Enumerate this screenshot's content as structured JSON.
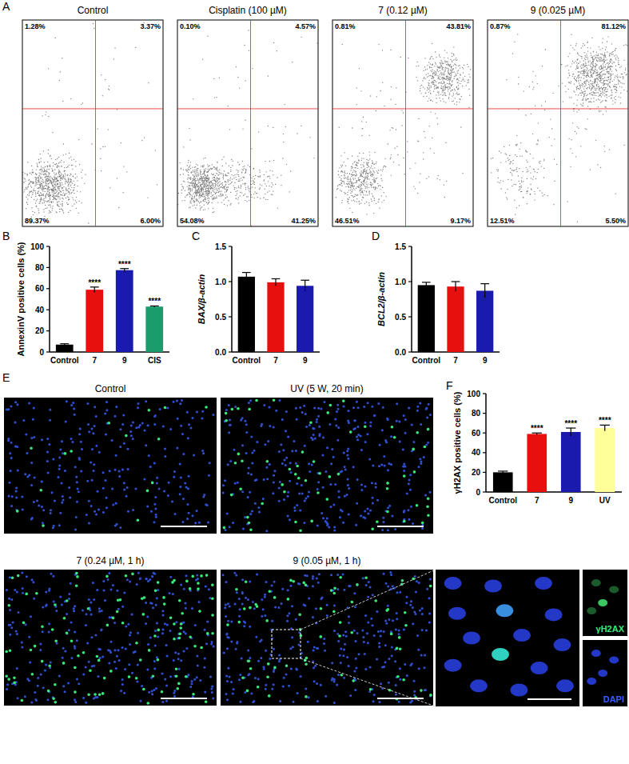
{
  "panel_labels": [
    "A",
    "B",
    "C",
    "D",
    "E",
    "F"
  ],
  "flow_cytometry": [
    {
      "title": "Control",
      "quadrants": [
        "1.28%",
        "3.37%",
        "89.37%",
        "6.00%"
      ]
    },
    {
      "title": "Cisplatin (100 µM)",
      "quadrants": [
        "0.10%",
        "4.57%",
        "54.08%",
        "41.25%"
      ]
    },
    {
      "title": "7 (0.12 µM)",
      "quadrants": [
        "0.81%",
        "43.81%",
        "46.51%",
        "9.17%"
      ]
    },
    {
      "title": "9 (0.025 µM)",
      "quadrants": [
        "0.87%",
        "81.12%",
        "12.51%",
        "5.50%"
      ]
    }
  ],
  "chart_data": [
    {
      "type": "bar",
      "ylabel": "AnnexinV positive cells (%)",
      "categories": [
        "Control",
        "7",
        "9",
        "CIS"
      ],
      "values": [
        7,
        59,
        77.5,
        43
      ],
      "errors": [
        0.8,
        2.5,
        1.5,
        0.6
      ],
      "colors": [
        "#000000",
        "#e8100f",
        "#1a1aae",
        "#1a9c6c"
      ],
      "significance": [
        null,
        "****",
        "****",
        "****"
      ],
      "ylim": [
        0,
        100
      ],
      "yticks": [
        0,
        20,
        40,
        60,
        80,
        100
      ]
    },
    {
      "type": "bar",
      "ylabel": "BAX/β-actin",
      "categories": [
        "Control",
        "7",
        "9"
      ],
      "values": [
        1.07,
        0.99,
        0.94
      ],
      "errors": [
        0.06,
        0.05,
        0.08
      ],
      "colors": [
        "#000000",
        "#e8100f",
        "#1a1aae"
      ],
      "ylim": [
        0,
        1.5
      ],
      "yticks": [
        {
          "value": 0,
          "label": "0.0"
        },
        {
          "value": 0.5,
          "label": "0.5"
        },
        {
          "value": 1,
          "label": "1.0"
        },
        {
          "value": 1.5,
          "label": "1.5"
        }
      ]
    },
    {
      "type": "bar",
      "ylabel": "BCL2/β-actin",
      "categories": [
        "Control",
        "7",
        "9"
      ],
      "values": [
        0.95,
        0.93,
        0.87
      ],
      "errors": [
        0.04,
        0.07,
        0.1
      ],
      "colors": [
        "#000000",
        "#e8100f",
        "#1a1aae"
      ],
      "ylim": [
        0,
        1.5
      ],
      "yticks": [
        {
          "value": 0,
          "label": "0.0"
        },
        {
          "value": 0.5,
          "label": "0.5"
        },
        {
          "value": 1,
          "label": "1.0"
        },
        {
          "value": 1.5,
          "label": "1.5"
        }
      ]
    },
    {
      "type": "bar",
      "ylabel": "γH2AX positive cells (%)",
      "categories": [
        "Control",
        "7",
        "9",
        "UV"
      ],
      "values": [
        20,
        59,
        61,
        65
      ],
      "errors": [
        1.2,
        1,
        4,
        3
      ],
      "colors": [
        "#000000",
        "#e8100f",
        "#1a1aae",
        "#ffff99"
      ],
      "significance": [
        null,
        "****",
        "****",
        "****"
      ],
      "ylim": [
        0,
        100
      ],
      "yticks": [
        0,
        20,
        40,
        60,
        80,
        100
      ]
    }
  ],
  "images": {
    "titles": [
      "Control",
      "UV (5 W, 20 min)",
      "7 (0.24 µM, 1 h)",
      "9 (0.05 µM, 1 h)"
    ],
    "inset_labels": [
      "γH2AX",
      "DAPI"
    ]
  }
}
